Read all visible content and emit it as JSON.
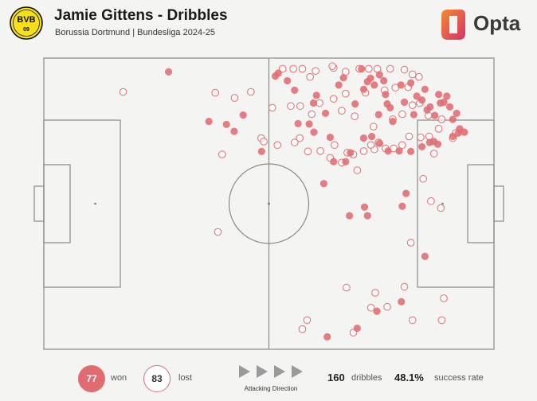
{
  "header": {
    "title": "Jamie Gittens - Dribbles",
    "subtitle": "Borussia Dortmund | Bundesliga 2024-25",
    "crest_text": "BVB",
    "crest_number": "09",
    "brand": "Opta"
  },
  "colors": {
    "won": "#e06c72",
    "lost_stroke": "#e06c72",
    "pitch_line": "#8a8a8a",
    "crest_yellow": "#f7e017",
    "brand_orange": "#f28a2c",
    "brand_pink": "#d6336c"
  },
  "footer": {
    "won_count": "77",
    "won_label": "won",
    "lost_count": "83",
    "lost_label": "lost",
    "direction_label": "Attacking Direction",
    "dribbles_count": "160",
    "dribbles_label": "dribbles",
    "success_rate": "48.1%",
    "success_label": "success rate"
  },
  "chart_data": {
    "type": "scatter",
    "pitch_length": 105,
    "pitch_width": 68,
    "attacking_direction": "left-to-right",
    "legend": [
      "won",
      "lost"
    ],
    "won": [
      [
        29.1,
        3.2
      ],
      [
        46.5,
        13.3
      ],
      [
        56.8,
        5.3
      ],
      [
        38.5,
        14.8
      ],
      [
        61.9,
        15.4
      ],
      [
        58.5,
        7.5
      ],
      [
        54.0,
        4.2
      ],
      [
        54.7,
        3.5
      ],
      [
        62.9,
        10.5
      ],
      [
        63.6,
        8.7
      ],
      [
        65.7,
        12.9
      ],
      [
        68.8,
        6.3
      ],
      [
        74.6,
        7.3
      ],
      [
        72.6,
        10.7
      ],
      [
        69.9,
        4.6
      ],
      [
        74.1,
        2.5
      ],
      [
        75.5,
        5.5
      ],
      [
        76.2,
        4.7
      ],
      [
        77.1,
        6.3
      ],
      [
        78.3,
        3.9
      ],
      [
        79.7,
        8.5
      ],
      [
        80.1,
        10.7
      ],
      [
        80.8,
        11.6
      ],
      [
        79.3,
        5.3
      ],
      [
        78.1,
        13.2
      ],
      [
        81.4,
        14.8
      ],
      [
        83.3,
        6.3
      ],
      [
        85.6,
        5.8
      ],
      [
        84.1,
        10.3
      ],
      [
        86.3,
        13.2
      ],
      [
        87.0,
        8.9
      ],
      [
        88.2,
        9.8
      ],
      [
        88.9,
        7.3
      ],
      [
        89.4,
        12.1
      ],
      [
        90.1,
        11.4
      ],
      [
        91.2,
        13.4
      ],
      [
        92.1,
        8.5
      ],
      [
        92.5,
        10.5
      ],
      [
        93.3,
        10.3
      ],
      [
        94.0,
        8.9
      ],
      [
        94.7,
        11.4
      ],
      [
        95.4,
        14.3
      ],
      [
        96.3,
        12.9
      ],
      [
        97.0,
        16.5
      ],
      [
        98.1,
        17.3
      ],
      [
        96.7,
        17.5
      ],
      [
        95.4,
        18.3
      ],
      [
        91.0,
        19.5
      ],
      [
        90.0,
        19.7
      ],
      [
        91.9,
        20.1
      ],
      [
        88.2,
        20.7
      ],
      [
        85.6,
        21.8
      ],
      [
        82.9,
        21.7
      ],
      [
        80.3,
        21.7
      ],
      [
        78.3,
        19.9
      ],
      [
        76.5,
        18.3
      ],
      [
        74.6,
        18.7
      ],
      [
        71.5,
        22.1
      ],
      [
        66.8,
        18.5
      ],
      [
        63.0,
        17.3
      ],
      [
        67.6,
        24.2
      ],
      [
        70.4,
        24.2
      ],
      [
        65.3,
        29.3
      ],
      [
        59.3,
        15.3
      ],
      [
        50.8,
        21.8
      ],
      [
        44.4,
        17.1
      ],
      [
        42.6,
        15.5
      ],
      [
        84.5,
        31.6
      ],
      [
        83.6,
        34.6
      ],
      [
        74.8,
        34.8
      ],
      [
        75.5,
        36.8
      ],
      [
        71.3,
        36.8
      ],
      [
        88.9,
        46.3
      ],
      [
        83.4,
        56.9
      ],
      [
        77.7,
        59.1
      ],
      [
        73.1,
        63.1
      ],
      [
        66.1,
        65.1
      ]
    ],
    "lost": [
      [
        18.5,
        7.9
      ],
      [
        40.0,
        8.1
      ],
      [
        44.5,
        9.3
      ],
      [
        48.3,
        7.9
      ],
      [
        55.7,
        2.5
      ],
      [
        58.2,
        2.5
      ],
      [
        60.3,
        2.5
      ],
      [
        62.1,
        4.4
      ],
      [
        63.4,
        3.0
      ],
      [
        67.6,
        2.3
      ],
      [
        67.3,
        1.9
      ],
      [
        70.4,
        3.2
      ],
      [
        73.6,
        2.5
      ],
      [
        75.8,
        2.5
      ],
      [
        77.8,
        2.5
      ],
      [
        80.8,
        2.5
      ],
      [
        84.1,
        2.7
      ],
      [
        86.0,
        3.8
      ],
      [
        87.5,
        4.4
      ],
      [
        85.0,
        6.8
      ],
      [
        82.0,
        6.9
      ],
      [
        79.5,
        7.5
      ],
      [
        75.0,
        8.1
      ],
      [
        70.4,
        8.3
      ],
      [
        67.6,
        9.5
      ],
      [
        64.3,
        10.5
      ],
      [
        59.8,
        11.2
      ],
      [
        57.6,
        11.2
      ],
      [
        53.3,
        11.6
      ],
      [
        62.5,
        13.1
      ],
      [
        69.5,
        12.3
      ],
      [
        72.5,
        13.6
      ],
      [
        76.9,
        16.0
      ],
      [
        81.4,
        14.3
      ],
      [
        83.6,
        13.1
      ],
      [
        86.0,
        11.0
      ],
      [
        87.7,
        10.5
      ],
      [
        89.7,
        13.4
      ],
      [
        92.8,
        14.3
      ],
      [
        92.1,
        16.5
      ],
      [
        89.9,
        18.3
      ],
      [
        87.9,
        18.5
      ],
      [
        85.2,
        18.3
      ],
      [
        83.6,
        20.3
      ],
      [
        81.6,
        21.1
      ],
      [
        79.7,
        21.1
      ],
      [
        78.1,
        19.7
      ],
      [
        77.1,
        21.3
      ],
      [
        76.3,
        20.3
      ],
      [
        74.6,
        21.7
      ],
      [
        72.2,
        22.5
      ],
      [
        70.8,
        22.1
      ],
      [
        67.8,
        20.3
      ],
      [
        64.5,
        21.7
      ],
      [
        61.6,
        21.8
      ],
      [
        59.7,
        18.7
      ],
      [
        58.5,
        19.7
      ],
      [
        54.5,
        20.3
      ],
      [
        50.7,
        18.7
      ],
      [
        51.3,
        19.5
      ],
      [
        41.6,
        22.5
      ],
      [
        66.8,
        23.3
      ],
      [
        69.5,
        24.4
      ],
      [
        73.1,
        26.2
      ],
      [
        88.5,
        28.2
      ],
      [
        95.4,
        18.7
      ],
      [
        96.1,
        17.5
      ],
      [
        91.0,
        22.3
      ],
      [
        40.6,
        40.6
      ],
      [
        70.6,
        53.6
      ],
      [
        77.3,
        54.8
      ],
      [
        84.1,
        53.4
      ],
      [
        93.3,
        56.1
      ],
      [
        92.8,
        61.2
      ],
      [
        86.0,
        61.2
      ],
      [
        80.1,
        58.1
      ],
      [
        76.3,
        58.3
      ],
      [
        72.2,
        64.1
      ],
      [
        61.4,
        61.2
      ],
      [
        60.3,
        63.3
      ],
      [
        85.6,
        43.1
      ],
      [
        92.6,
        35.0
      ],
      [
        90.3,
        33.4
      ]
    ]
  }
}
